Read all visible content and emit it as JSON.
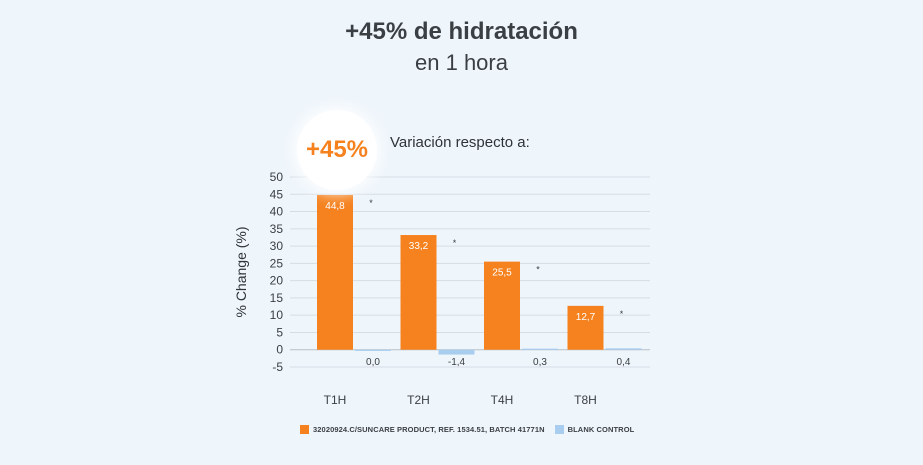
{
  "header": {
    "title": "+45% de hidratación",
    "subtitle": "en 1 hora"
  },
  "badge": {
    "text": "+45%"
  },
  "variation_label": "Variación respecto a:",
  "colors": {
    "product": "#f5821f",
    "control": "#a9cdef",
    "badge_text": "#f5821f"
  },
  "chart_data": {
    "type": "bar",
    "title": "",
    "xlabel": "",
    "ylabel": "% Change (%)",
    "ylim": [
      -5,
      50
    ],
    "yticks": [
      50,
      45,
      40,
      35,
      30,
      25,
      20,
      15,
      10,
      5,
      0,
      -5
    ],
    "grid": true,
    "legend_position": "bottom",
    "categories": [
      "T1H",
      "T2H",
      "T4H",
      "T8H"
    ],
    "series": [
      {
        "name": "32020924.C/SUNCARE PRODUCT, REF. 1534.51, BATCH 41771N",
        "values": [
          44.8,
          33.2,
          25.5,
          12.7
        ],
        "labels": [
          "44,8",
          "33,2",
          "25,5",
          "12,7"
        ],
        "color": "#f5821f"
      },
      {
        "name": "BLANK CONTROL",
        "values": [
          0.0,
          -1.4,
          0.3,
          0.4
        ],
        "labels": [
          "0,0",
          "-1,4",
          "0,3",
          "0,4"
        ],
        "color": "#a9cdef"
      }
    ],
    "significance_markers": [
      "*",
      "*",
      "*",
      "*"
    ]
  }
}
